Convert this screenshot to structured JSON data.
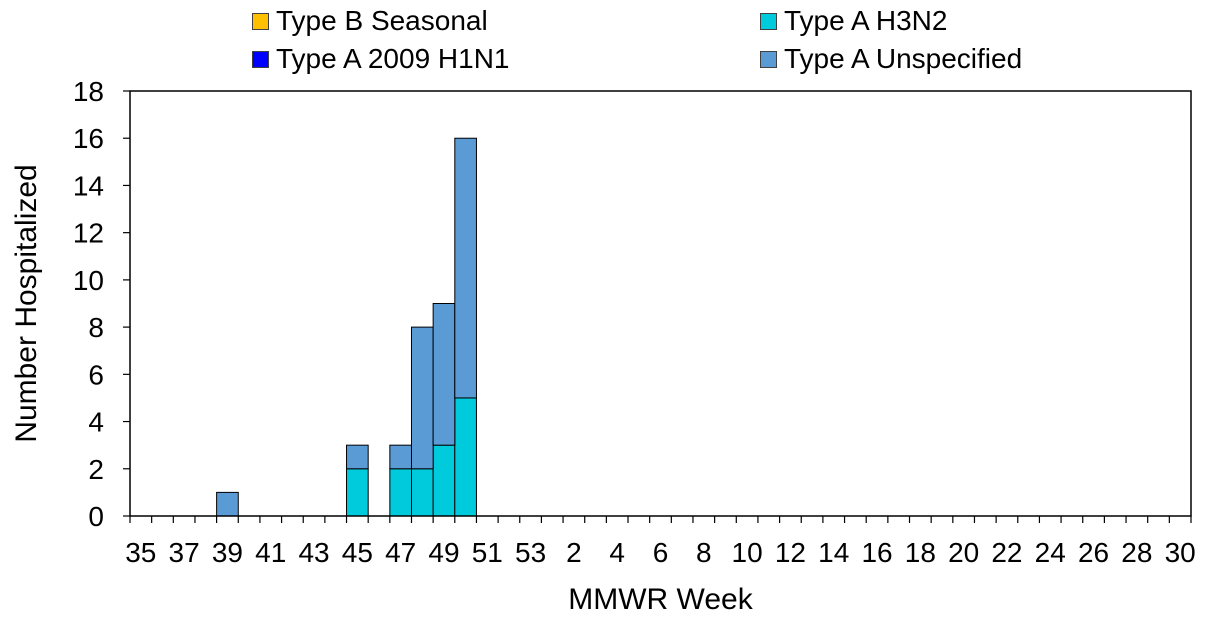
{
  "chart_data": {
    "type": "bar",
    "stacked": true,
    "xlabel": "MMWR Week",
    "ylabel": "Number Hospitalized",
    "ylim": [
      0,
      18
    ],
    "y_ticks": [
      0,
      2,
      4,
      6,
      8,
      10,
      12,
      14,
      16,
      18
    ],
    "categories": [
      "35",
      "36",
      "37",
      "38",
      "39",
      "40",
      "41",
      "42",
      "43",
      "44",
      "45",
      "46",
      "47",
      "48",
      "49",
      "50",
      "51",
      "52",
      "53",
      "1",
      "2",
      "3",
      "4",
      "5",
      "6",
      "7",
      "8",
      "9",
      "10",
      "11",
      "12",
      "13",
      "14",
      "15",
      "16",
      "17",
      "18",
      "19",
      "20",
      "21",
      "22",
      "23",
      "24",
      "25",
      "26",
      "27",
      "28",
      "29",
      "30"
    ],
    "x_tick_labels": [
      "35",
      "37",
      "39",
      "41",
      "43",
      "45",
      "47",
      "49",
      "51",
      "53",
      "2",
      "4",
      "6",
      "8",
      "10",
      "12",
      "14",
      "16",
      "18",
      "20",
      "22",
      "24",
      "26",
      "28",
      "30"
    ],
    "legend_position": "top",
    "grid": false,
    "series": [
      {
        "name": "Type A H3N2",
        "color": "#00cbdc",
        "values": [
          0,
          0,
          0,
          0,
          0,
          0,
          0,
          0,
          0,
          0,
          2,
          0,
          2,
          2,
          3,
          5,
          0,
          0,
          0,
          0,
          0,
          0,
          0,
          0,
          0,
          0,
          0,
          0,
          0,
          0,
          0,
          0,
          0,
          0,
          0,
          0,
          0,
          0,
          0,
          0,
          0,
          0,
          0,
          0,
          0,
          0,
          0,
          0,
          0
        ]
      },
      {
        "name": "Type A Unspecified",
        "color": "#5b9bd5",
        "values": [
          0,
          0,
          0,
          0,
          1,
          0,
          0,
          0,
          0,
          0,
          1,
          0,
          1,
          6,
          6,
          11,
          0,
          0,
          0,
          0,
          0,
          0,
          0,
          0,
          0,
          0,
          0,
          0,
          0,
          0,
          0,
          0,
          0,
          0,
          0,
          0,
          0,
          0,
          0,
          0,
          0,
          0,
          0,
          0,
          0,
          0,
          0,
          0,
          0
        ]
      },
      {
        "name": "Type A 2009 H1N1",
        "color": "#0000ff",
        "values": [
          0,
          0,
          0,
          0,
          0,
          0,
          0,
          0,
          0,
          0,
          0,
          0,
          0,
          0,
          0,
          0,
          0,
          0,
          0,
          0,
          0,
          0,
          0,
          0,
          0,
          0,
          0,
          0,
          0,
          0,
          0,
          0,
          0,
          0,
          0,
          0,
          0,
          0,
          0,
          0,
          0,
          0,
          0,
          0,
          0,
          0,
          0,
          0,
          0
        ]
      },
      {
        "name": "Type B Seasonal",
        "color": "#ffc000",
        "values": [
          0,
          0,
          0,
          0,
          0,
          0,
          0,
          0,
          0,
          0,
          0,
          0,
          0,
          0,
          0,
          0,
          0,
          0,
          0,
          0,
          0,
          0,
          0,
          0,
          0,
          0,
          0,
          0,
          0,
          0,
          0,
          0,
          0,
          0,
          0,
          0,
          0,
          0,
          0,
          0,
          0,
          0,
          0,
          0,
          0,
          0,
          0,
          0,
          0
        ]
      }
    ],
    "legend": [
      {
        "name": "Type B Seasonal",
        "color": "#ffc000"
      },
      {
        "name": "Type A H3N2",
        "color": "#00cbdc"
      },
      {
        "name": "Type A 2009 H1N1",
        "color": "#0000ff"
      },
      {
        "name": "Type A Unspecified",
        "color": "#5b9bd5"
      }
    ]
  }
}
